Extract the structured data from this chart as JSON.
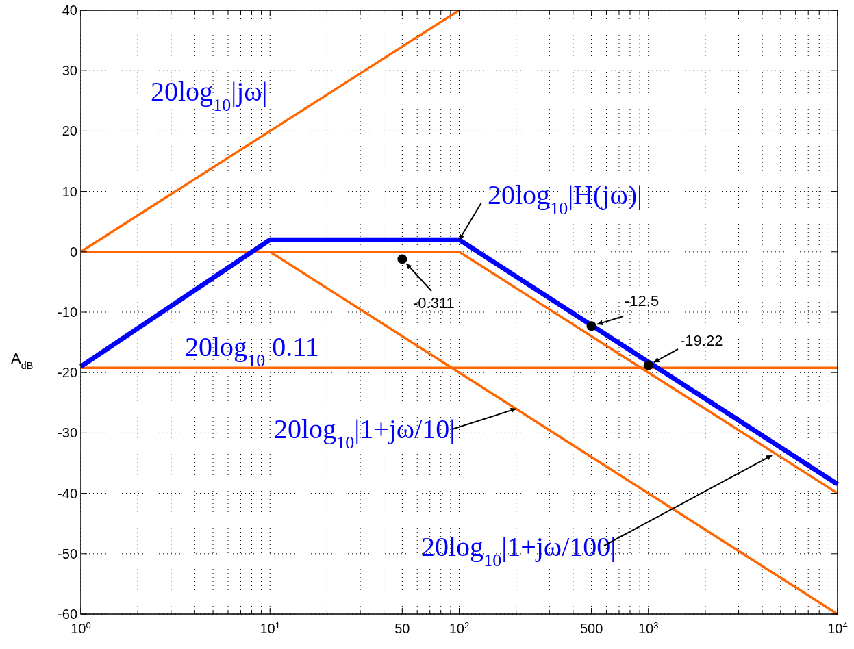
{
  "chart_data": {
    "type": "line",
    "log": "x",
    "xlim": [
      1,
      10000
    ],
    "ylim": [
      -60,
      40
    ],
    "xticks": [
      {
        "value": 1,
        "label": "10$^{0}$"
      },
      {
        "value": 2,
        "label": null
      },
      {
        "value": 3,
        "label": null
      },
      {
        "value": 4,
        "label": null
      },
      {
        "value": 5,
        "label": null
      },
      {
        "value": 6,
        "label": null
      },
      {
        "value": 7,
        "label": null
      },
      {
        "value": 8,
        "label": null
      },
      {
        "value": 9,
        "label": null
      },
      {
        "value": 10,
        "label": "10$^{1}$"
      },
      {
        "value": 20,
        "label": null
      },
      {
        "value": 30,
        "label": null
      },
      {
        "value": 40,
        "label": null
      },
      {
        "value": 50,
        "label": "50"
      },
      {
        "value": 60,
        "label": null
      },
      {
        "value": 70,
        "label": null
      },
      {
        "value": 80,
        "label": null
      },
      {
        "value": 90,
        "label": null
      },
      {
        "value": 100,
        "label": "10$^{2}$"
      },
      {
        "value": 200,
        "label": null
      },
      {
        "value": 300,
        "label": null
      },
      {
        "value": 400,
        "label": null
      },
      {
        "value": 500,
        "label": "500"
      },
      {
        "value": 600,
        "label": null
      },
      {
        "value": 700,
        "label": null
      },
      {
        "value": 800,
        "label": null
      },
      {
        "value": 900,
        "label": null
      },
      {
        "value": 1000,
        "label": "10$^{3}$"
      },
      {
        "value": 2000,
        "label": null
      },
      {
        "value": 3000,
        "label": null
      },
      {
        "value": 4000,
        "label": null
      },
      {
        "value": 5000,
        "label": null
      },
      {
        "value": 6000,
        "label": null
      },
      {
        "value": 7000,
        "label": null
      },
      {
        "value": 8000,
        "label": null
      },
      {
        "value": 9000,
        "label": null
      },
      {
        "value": 10000,
        "label": "10$^{4}$"
      }
    ],
    "yticks": [
      -60,
      -50,
      -40,
      -30,
      -20,
      -10,
      0,
      10,
      20,
      30,
      40
    ],
    "ylabel": "A$_{dB}$",
    "grid": true,
    "line_style": "solid",
    "marker": "none",
    "series": [
      {
        "color": "#ff6600",
        "x": [
          1,
          100
        ],
        "values": [
          0,
          40
        ]
      },
      {
        "color": "#ff6600",
        "x": [
          1,
          10,
          10000
        ],
        "values": [
          0,
          0,
          -60
        ]
      },
      {
        "color": "#ff6600",
        "x": [
          1,
          100,
          10000
        ],
        "values": [
          0,
          0,
          -40
        ]
      },
      {
        "color": "#ff6600",
        "x": [
          1,
          10000
        ],
        "values": [
          -19.2,
          -19.2
        ]
      },
      {
        "color": "#0000ff",
        "x": [
          1,
          10,
          100,
          10000
        ],
        "values": [
          -19,
          2,
          2,
          -38.5
        ]
      },
      {
        "type": "scatter",
        "marker": "circle",
        "color": "#000000",
        "x": [
          50,
          500,
          1000
        ],
        "values": [
          -1.2,
          -12.3,
          -18.8
        ]
      }
    ],
    "annotations": [
      "20log$_{10}$|jω|",
      "20log$_{10}$ 0.11",
      {
        "text": "20log$_{10}$|H(jω)|",
        "x": 100,
        "y": 2
      },
      {
        "text": "20log$_{10}$|1+jω/10|",
        "x": 200,
        "y": -26
      },
      {
        "text": "20log$_{10}$|1+jω/100|",
        "x": 4500,
        "y": -33.7
      },
      {
        "text": "-0.311",
        "x": 50,
        "y": -1.2
      },
      {
        "text": "-12.5",
        "x": 500,
        "y": -12.3
      },
      {
        "text": "-19.22",
        "x": 1000,
        "y": -18.8
      }
    ]
  }
}
